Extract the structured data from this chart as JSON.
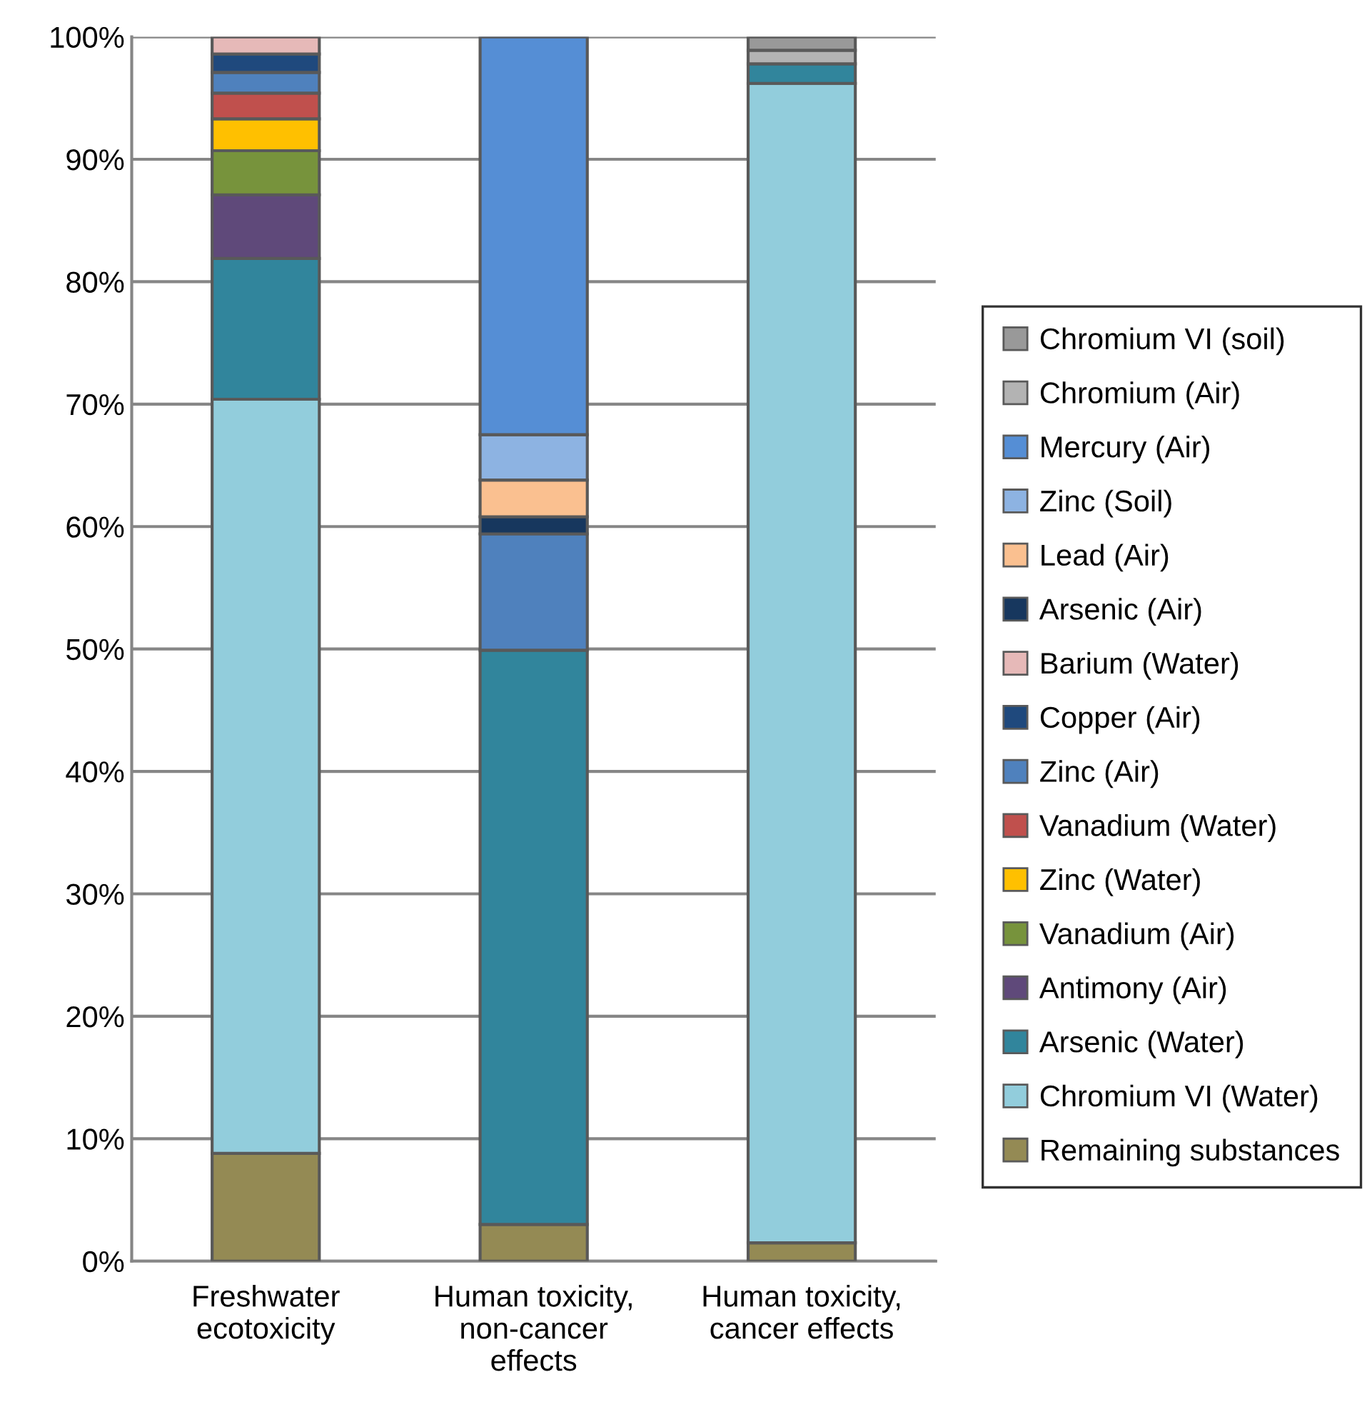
{
  "chart_data": {
    "type": "bar",
    "stacked": true,
    "categories": [
      "Freshwater\necotoxicity",
      "Human toxicity,\nnon-cancer\neffects",
      "Human toxicity,\ncancer effects"
    ],
    "series": [
      {
        "name": "Remaining substances",
        "color": "#948a54",
        "values": [
          8.8,
          3.0,
          1.5
        ]
      },
      {
        "name": "Chromium VI (Water)",
        "color": "#92cddc",
        "values": [
          61.6,
          null,
          94.7
        ]
      },
      {
        "name": "Arsenic (Water)",
        "color": "#31859c",
        "values": [
          11.5,
          46.9,
          1.6
        ]
      },
      {
        "name": "Antimony (Air)",
        "color": "#5f497a",
        "values": [
          5.2,
          null,
          null
        ]
      },
      {
        "name": "Vanadium (Air)",
        "color": "#77933c",
        "values": [
          3.6,
          null,
          null
        ]
      },
      {
        "name": "Zinc (Water)",
        "color": "#ffc000",
        "values": [
          2.6,
          null,
          null
        ]
      },
      {
        "name": "Vanadium (Water)",
        "color": "#c0504d",
        "values": [
          2.1,
          null,
          null
        ]
      },
      {
        "name": "Zinc (Air)",
        "color": "#4f81bd",
        "values": [
          1.7,
          9.5,
          null
        ]
      },
      {
        "name": "Copper (Air)",
        "color": "#1f497d",
        "values": [
          1.5,
          null,
          null
        ]
      },
      {
        "name": "Barium (Water)",
        "color": "#e6b9b8",
        "values": [
          1.4,
          null,
          null
        ]
      },
      {
        "name": "Arsenic (Air)",
        "color": "#17375e",
        "values": [
          null,
          1.4,
          null
        ]
      },
      {
        "name": "Lead (Air)",
        "color": "#fac090",
        "values": [
          null,
          3.0,
          null
        ]
      },
      {
        "name": "Zinc (Soil)",
        "color": "#8db3e2",
        "values": [
          null,
          3.7,
          null
        ]
      },
      {
        "name": "Mercury (Air)",
        "color": "#558ed5",
        "values": [
          null,
          32.5,
          null
        ]
      },
      {
        "name": "Chromium (Air)",
        "color": "#b3b3b3",
        "values": [
          null,
          null,
          1.1
        ]
      },
      {
        "name": "Chromium VI (soil)",
        "color": "#999999",
        "values": [
          null,
          null,
          1.1
        ]
      }
    ],
    "ylim": [
      0,
      100
    ],
    "yticks": [
      {
        "value": 0,
        "label": "0%"
      },
      {
        "value": 10,
        "label": "10%"
      },
      {
        "value": 20,
        "label": "20%"
      },
      {
        "value": 30,
        "label": "30%"
      },
      {
        "value": 40,
        "label": "40%"
      },
      {
        "value": 50,
        "label": "50%"
      },
      {
        "value": 60,
        "label": "60%"
      },
      {
        "value": 70,
        "label": "70%"
      },
      {
        "value": 80,
        "label": "80%"
      },
      {
        "value": 90,
        "label": "90%"
      },
      {
        "value": 100,
        "label": "100%"
      }
    ],
    "grid": "y",
    "legend": "right"
  }
}
